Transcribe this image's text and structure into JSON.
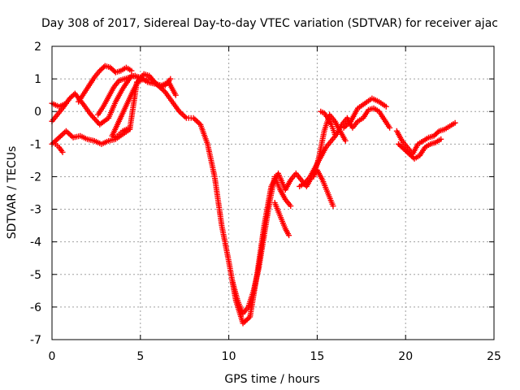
{
  "chart_data": {
    "type": "scatter",
    "title": "Day 308 of 2017, Sidereal Day-to-day VTEC variation (SDTVAR) for receiver ajac",
    "xlabel": "GPS time / hours",
    "ylabel": "SDTVAR / TECUs",
    "xlim": [
      0,
      25
    ],
    "ylim": [
      -7,
      2
    ],
    "x_ticks": [
      "0",
      "5",
      "10",
      "15",
      "20",
      "25"
    ],
    "y_ticks": [
      "-7",
      "-6",
      "-5",
      "-4",
      "-3",
      "-2",
      "-1",
      "0",
      "1",
      "2"
    ],
    "grid": true,
    "marker": "plus",
    "marker_color": "#ff0000",
    "tracks": [
      {
        "x": [
          0.0,
          0.4,
          0.8,
          1.2,
          1.6,
          2.0,
          2.4,
          2.8,
          3.2,
          3.6,
          4.0,
          4.4,
          4.8,
          5.2,
          5.6,
          6.0,
          6.4,
          6.8,
          7.2,
          7.6,
          8.0,
          8.4,
          8.8,
          9.2,
          9.6,
          10.0,
          10.4,
          10.8,
          11.2,
          11.6,
          12.0,
          12.4,
          12.8,
          13.2
        ],
        "y": [
          -1.0,
          -0.8,
          -0.6,
          -0.8,
          -0.75,
          -0.85,
          -0.9,
          -1.0,
          -0.9,
          -0.85,
          -0.7,
          -0.55,
          0.9,
          1.0,
          1.0,
          0.8,
          0.6,
          0.3,
          0.0,
          -0.2,
          -0.2,
          -0.4,
          -1.0,
          -2.0,
          -3.5,
          -4.6,
          -5.8,
          -6.5,
          -6.3,
          -5.0,
          -3.5,
          -2.3,
          -1.9,
          -2.4
        ]
      },
      {
        "x": [
          0.0,
          0.3,
          0.6,
          1.0,
          1.3,
          1.8,
          2.2,
          2.7,
          3.2,
          3.6,
          4.0,
          4.5,
          5.0,
          5.4,
          5.8,
          6.2,
          6.6,
          7.0
        ],
        "y": [
          -0.3,
          -0.1,
          0.1,
          0.4,
          0.55,
          0.2,
          -0.1,
          -0.4,
          -0.2,
          0.3,
          0.7,
          1.1,
          1.05,
          0.9,
          0.85,
          0.8,
          0.9,
          0.5
        ]
      },
      {
        "x": [
          0.0,
          0.2,
          0.4,
          0.6,
          0.8
        ],
        "y": [
          0.25,
          0.2,
          0.15,
          0.2,
          0.25
        ]
      },
      {
        "x": [
          0.2,
          0.4,
          0.6
        ],
        "y": [
          -1.0,
          -1.1,
          -1.25
        ]
      },
      {
        "x": [
          1.5,
          1.8,
          2.1,
          2.4,
          2.7,
          3.0,
          3.3,
          3.6,
          3.9,
          4.2,
          4.5
        ],
        "y": [
          0.3,
          0.55,
          0.8,
          1.05,
          1.25,
          1.4,
          1.35,
          1.2,
          1.25,
          1.35,
          1.25
        ]
      },
      {
        "x": [
          2.6,
          2.9,
          3.2,
          3.5,
          3.8,
          4.1,
          4.4,
          4.7,
          5.0
        ],
        "y": [
          -0.1,
          0.15,
          0.45,
          0.75,
          0.95,
          1.0,
          1.05,
          1.1,
          1.0
        ]
      },
      {
        "x": [
          3.4,
          3.6,
          3.8,
          4.0,
          4.2,
          4.4
        ],
        "y": [
          -0.75,
          -0.8,
          -0.7,
          -0.6,
          -0.55,
          -0.5
        ]
      },
      {
        "x": [
          3.4,
          3.7,
          4.0,
          4.3,
          4.6,
          4.9,
          5.2,
          5.5,
          5.8,
          6.1,
          6.4,
          6.7
        ],
        "y": [
          -0.75,
          -0.4,
          -0.05,
          0.3,
          0.65,
          0.95,
          1.15,
          1.1,
          0.9,
          0.75,
          0.8,
          1.0
        ]
      },
      {
        "x": [
          10.2,
          10.5,
          10.8,
          11.1,
          11.4,
          11.7,
          12.0,
          12.3,
          12.6,
          12.9,
          13.2,
          13.5
        ],
        "y": [
          -5.2,
          -5.8,
          -6.2,
          -6.0,
          -5.5,
          -4.8,
          -3.8,
          -2.8,
          -2.0,
          -2.4,
          -2.7,
          -2.9
        ]
      },
      {
        "x": [
          12.6,
          12.9,
          13.2,
          13.4
        ],
        "y": [
          -2.8,
          -3.2,
          -3.6,
          -3.8
        ]
      },
      {
        "x": [
          13.2,
          13.5,
          13.8,
          14.1,
          14.4,
          14.7,
          15.0,
          15.3,
          15.6,
          15.9
        ],
        "y": [
          -2.4,
          -2.1,
          -1.9,
          -2.1,
          -2.3,
          -2.0,
          -1.8,
          -2.1,
          -2.5,
          -2.9
        ]
      },
      {
        "x": [
          14.0,
          14.3,
          14.6,
          14.9,
          15.2,
          15.5,
          15.8,
          16.1,
          16.4,
          16.7,
          17.0,
          17.3,
          17.6,
          17.9,
          18.2,
          18.5,
          18.8,
          19.1
        ],
        "y": [
          -2.3,
          -2.2,
          -2.0,
          -1.7,
          -1.4,
          -1.1,
          -0.9,
          -0.7,
          -0.4,
          -0.2,
          -0.5,
          -0.3,
          -0.2,
          0.05,
          0.1,
          0.0,
          -0.25,
          -0.5
        ]
      },
      {
        "x": [
          14.8,
          15.1,
          15.4,
          15.7,
          16.0,
          16.3,
          16.6
        ],
        "y": [
          -2.0,
          -1.4,
          -0.6,
          -0.1,
          -0.3,
          -0.6,
          -0.9
        ]
      },
      {
        "x": [
          15.2,
          15.4,
          15.6,
          15.8,
          16.0
        ],
        "y": [
          0.0,
          -0.05,
          -0.2,
          -0.4,
          -0.7
        ]
      },
      {
        "x": [
          16.5,
          16.9,
          17.3,
          17.7,
          18.1,
          18.5,
          18.9
        ],
        "y": [
          -0.5,
          -0.3,
          0.1,
          0.25,
          0.4,
          0.3,
          0.15
        ]
      },
      {
        "x": [
          19.5,
          19.8,
          20.1,
          20.4,
          20.7,
          21.0,
          21.3,
          21.6,
          21.9,
          22.2,
          22.5,
          22.8
        ],
        "y": [
          -0.6,
          -0.9,
          -1.1,
          -1.3,
          -1.0,
          -0.9,
          -0.8,
          -0.75,
          -0.6,
          -0.55,
          -0.45,
          -0.35
        ]
      },
      {
        "x": [
          19.6,
          19.9,
          20.2,
          20.5,
          20.8,
          21.1,
          21.4,
          21.7,
          22.0
        ],
        "y": [
          -1.0,
          -1.15,
          -1.3,
          -1.45,
          -1.35,
          -1.1,
          -1.0,
          -0.95,
          -0.85
        ]
      }
    ]
  }
}
